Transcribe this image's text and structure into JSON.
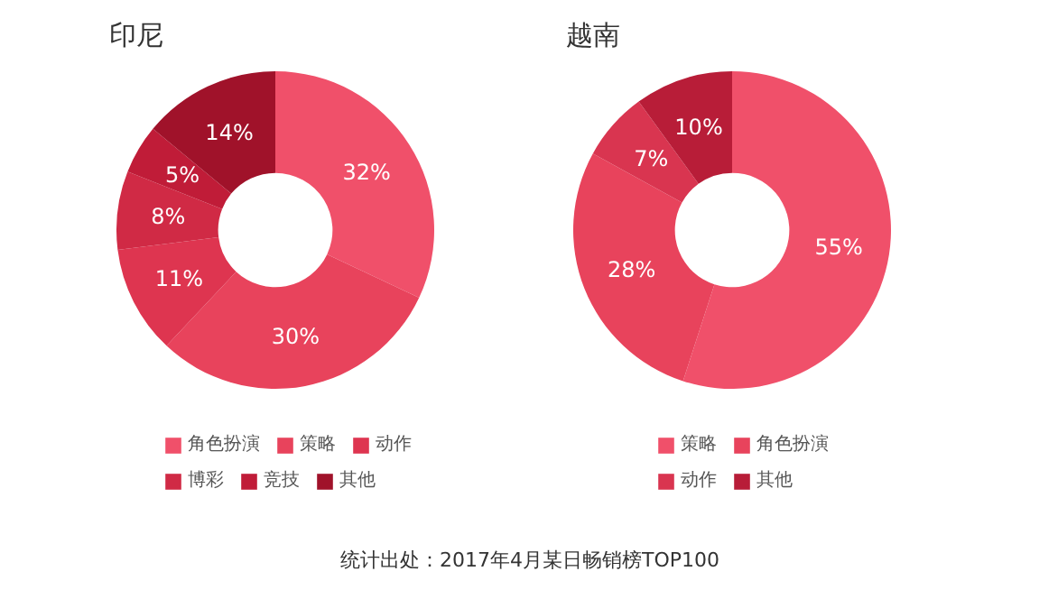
{
  "chart_data": [
    {
      "type": "donut",
      "title": "印尼",
      "categories": [
        "角色扮演",
        "策略",
        "动作",
        "博彩",
        "竞技",
        "其他"
      ],
      "values": [
        32,
        30,
        11,
        8,
        5,
        14
      ],
      "colors": [
        "#f0506a",
        "#e8435c",
        "#de3550",
        "#d02a45",
        "#c01c38",
        "#a0122a"
      ],
      "value_labels": [
        "32%",
        "30%",
        "11%",
        "8%",
        "5%",
        "14%"
      ],
      "legend": "bottom"
    },
    {
      "type": "donut",
      "title": "越南",
      "categories": [
        "策略",
        "角色扮演",
        "动作",
        "其他"
      ],
      "values": [
        55,
        28,
        7,
        10
      ],
      "colors": [
        "#f0506a",
        "#e8435c",
        "#d93550",
        "#b81d38"
      ],
      "value_labels": [
        "55%",
        "28%",
        "7%",
        "10%"
      ],
      "legend": "bottom",
      "annotations": [
        "统计出处：2017年4月某日畅销榜TOP100"
      ]
    }
  ]
}
